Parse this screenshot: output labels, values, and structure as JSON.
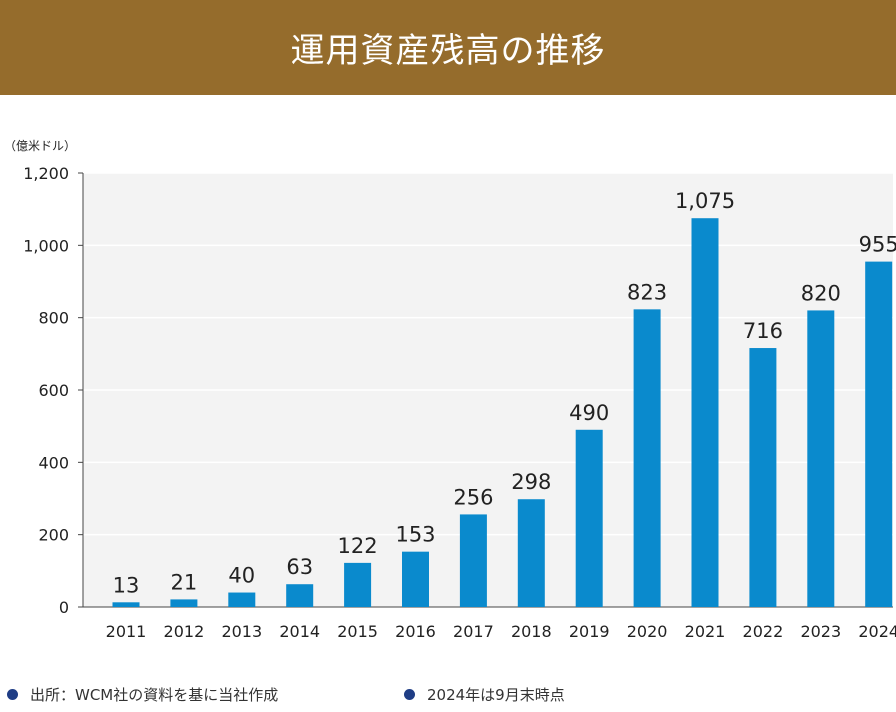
{
  "header": {
    "title": "運用資産残高の推移"
  },
  "chart_data": {
    "type": "bar",
    "title": "運用資産残高の推移",
    "unit_label": "（億米ドル）",
    "categories": [
      "2011",
      "2012",
      "2013",
      "2014",
      "2015",
      "2016",
      "2017",
      "2018",
      "2019",
      "2020",
      "2021",
      "2022",
      "2023",
      "2024"
    ],
    "values": [
      13,
      21,
      40,
      63,
      122,
      153,
      256,
      298,
      490,
      823,
      1075,
      716,
      820,
      955
    ],
    "value_labels": [
      "13",
      "21",
      "40",
      "63",
      "122",
      "153",
      "256",
      "298",
      "490",
      "823",
      "1,075",
      "716",
      "820",
      "955"
    ],
    "y_ticks": [
      0,
      200,
      400,
      600,
      800,
      1000,
      1200
    ],
    "y_tick_labels": [
      "0",
      "200",
      "400",
      "600",
      "800",
      "1,000",
      "1,200"
    ],
    "ylim": [
      0,
      1200
    ],
    "grid": true,
    "bar_color": "#0a8acd"
  },
  "footer": {
    "source_note": "出所：WCM社の資料を基に当社作成",
    "date_note": "2024年は9月末時点"
  },
  "colors": {
    "header_bg": "#956c2c",
    "bullet": "#1f3d85",
    "plot_bg": "#f3f3f3"
  }
}
